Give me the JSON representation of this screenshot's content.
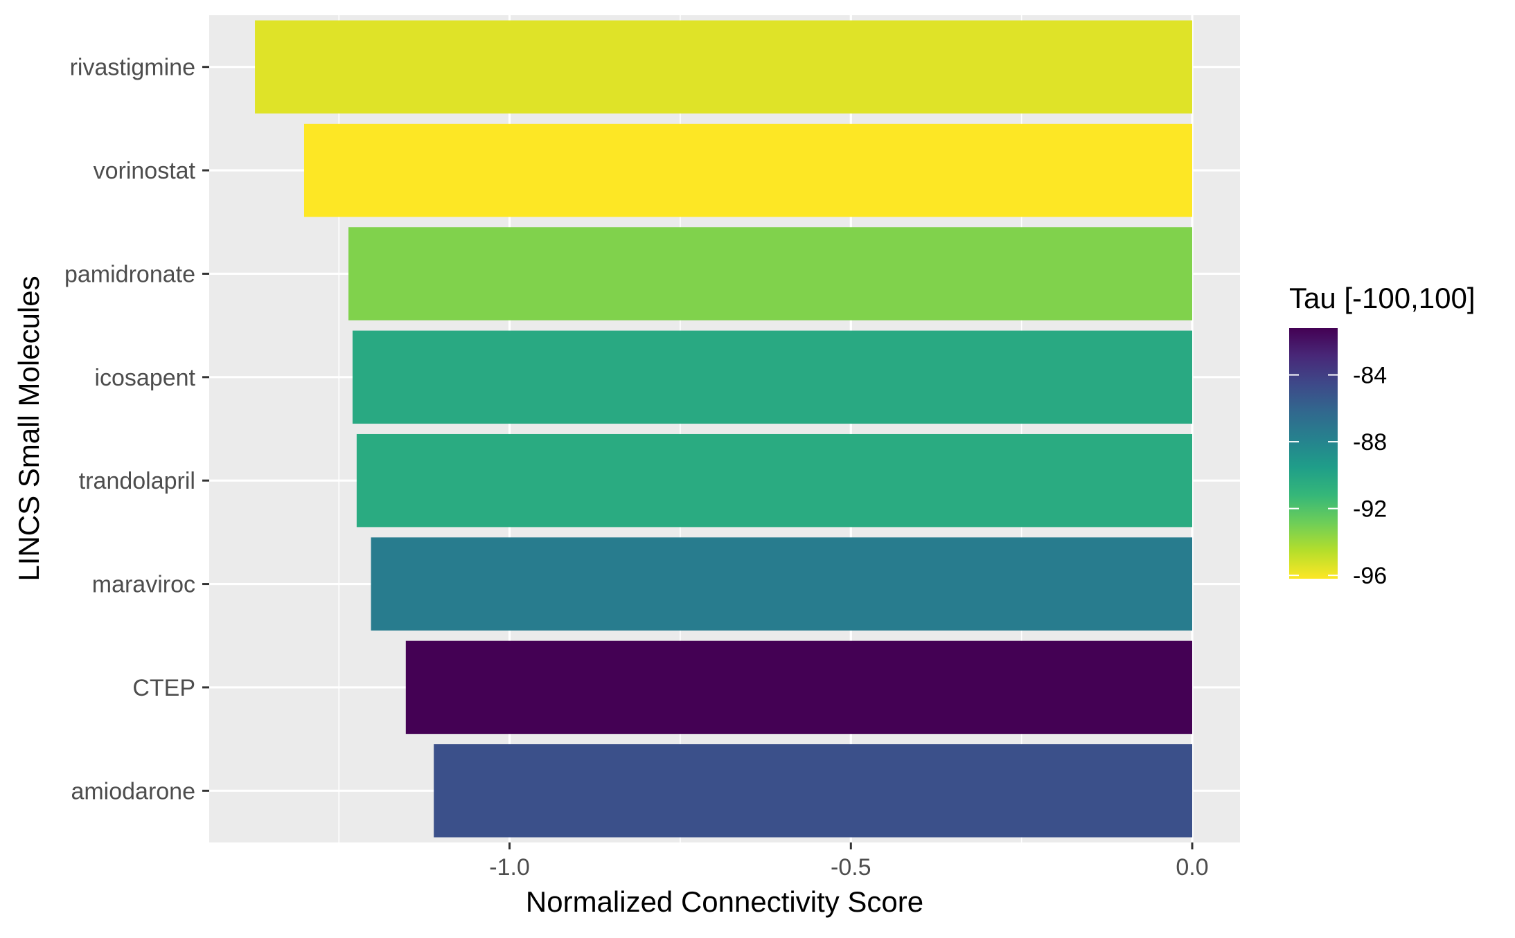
{
  "chart_data": {
    "type": "bar",
    "orientation": "horizontal",
    "title": "",
    "xlabel": "Normalized Connectivity Score",
    "ylabel": "LINCS Small Molecules",
    "xlim": [
      -1.44,
      0.07
    ],
    "xticks": [
      -1.0,
      -0.5,
      0.0
    ],
    "xtick_labels": [
      "-1.0",
      "-0.5",
      "0.0"
    ],
    "grid": true,
    "categories": [
      "rivastigmine",
      "vorinostat",
      "pamidronate",
      "icosapent",
      "trandolapril",
      "maraviroc",
      "CTEP",
      "amiodarone"
    ],
    "values": [
      -1.373,
      -1.301,
      -1.236,
      -1.23,
      -1.224,
      -1.203,
      -1.152,
      -1.111
    ],
    "color_values": [
      -95.5,
      -96.2,
      -93.3,
      -90.3,
      -90.4,
      -87.5,
      -81.2,
      -84.9
    ],
    "legend": {
      "title": "Tau [-100,100]",
      "position": "right",
      "range": [
        -96.2,
        -81.2
      ],
      "ticks": [
        -84,
        -88,
        -92,
        -96
      ],
      "tick_labels": [
        "-84",
        "-88",
        "-92",
        "-96"
      ],
      "colors": [
        "#FDE725",
        "#B5DE2B",
        "#6ECE58",
        "#35B779",
        "#1F9E89",
        "#26828E",
        "#31688E",
        "#3E4989",
        "#482878",
        "#440154"
      ]
    }
  }
}
